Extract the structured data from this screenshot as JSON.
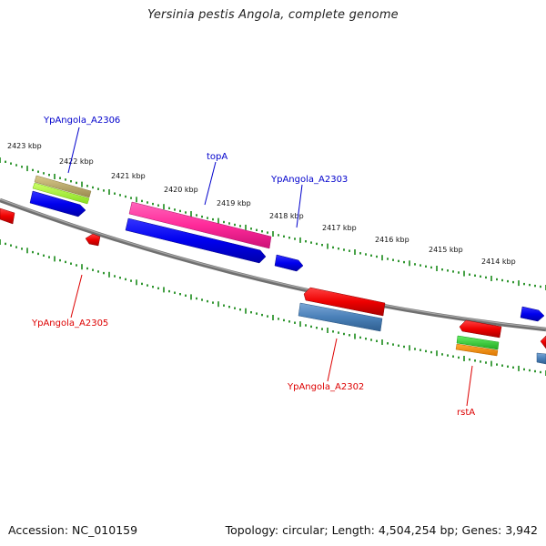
{
  "title": "Yersinia pestis Angola, complete genome",
  "footer": {
    "accession": "Accession: NC_010159",
    "summary": "Topology: circular; Length: 4,504,254 bp; Genes: 3,942"
  },
  "ruler": {
    "unit": "kbp",
    "ticks": [
      "2423 kbp",
      "2422 kbp",
      "2421 kbp",
      "2420 kbp",
      "2419 kbp",
      "2418 kbp",
      "2417 kbp",
      "2416 kbp",
      "2415 kbp",
      "2414 kbp"
    ]
  },
  "genes": [
    {
      "name": "YpAngola_A2306",
      "strand": "forward",
      "color": "#0000cc"
    },
    {
      "name": "topA",
      "strand": "forward",
      "color": "#0000cc"
    },
    {
      "name": "YpAngola_A2303",
      "strand": "forward",
      "color": "#0000cc"
    },
    {
      "name": "YpAngola_A2305",
      "strand": "reverse",
      "color": "#dd0000"
    },
    {
      "name": "YpAngola_A2302",
      "strand": "reverse",
      "color": "#dd0000"
    },
    {
      "name": "rstA",
      "strand": "reverse",
      "color": "#dd0000"
    }
  ],
  "colors": {
    "backbone": "#808080",
    "tick": "#1a8a1a",
    "forward_cds": "#0000ee",
    "reverse_cds": "#ee0000",
    "pink": "#ff2a9a",
    "olive": "#b8a860",
    "lime": "#aaff33",
    "steelblue": "#4a80b8",
    "green": "#33cc33",
    "orange": "#ff8800"
  }
}
